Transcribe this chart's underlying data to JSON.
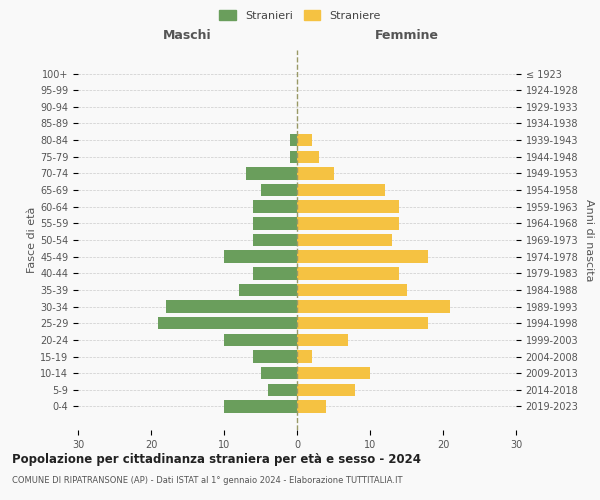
{
  "age_groups": [
    "0-4",
    "5-9",
    "10-14",
    "15-19",
    "20-24",
    "25-29",
    "30-34",
    "35-39",
    "40-44",
    "45-49",
    "50-54",
    "55-59",
    "60-64",
    "65-69",
    "70-74",
    "75-79",
    "80-84",
    "85-89",
    "90-94",
    "95-99",
    "100+"
  ],
  "birth_years": [
    "2019-2023",
    "2014-2018",
    "2009-2013",
    "2004-2008",
    "1999-2003",
    "1994-1998",
    "1989-1993",
    "1984-1988",
    "1979-1983",
    "1974-1978",
    "1969-1973",
    "1964-1968",
    "1959-1963",
    "1954-1958",
    "1949-1953",
    "1944-1948",
    "1939-1943",
    "1934-1938",
    "1929-1933",
    "1924-1928",
    "≤ 1923"
  ],
  "males": [
    10,
    4,
    5,
    6,
    10,
    19,
    18,
    8,
    6,
    10,
    6,
    6,
    6,
    5,
    7,
    1,
    1,
    0,
    0,
    0,
    0
  ],
  "females": [
    4,
    8,
    10,
    2,
    7,
    18,
    21,
    15,
    14,
    18,
    13,
    14,
    14,
    12,
    5,
    3,
    2,
    0,
    0,
    0,
    0
  ],
  "male_color": "#6a9e5c",
  "female_color": "#f5c242",
  "background_color": "#f9f9f9",
  "grid_color": "#cccccc",
  "title": "Popolazione per cittadinanza straniera per età e sesso - 2024",
  "subtitle": "COMUNE DI RIPATRANSONE (AP) - Dati ISTAT al 1° gennaio 2024 - Elaborazione TUTTITALIA.IT",
  "xlabel_left": "Maschi",
  "xlabel_right": "Femmine",
  "ylabel_left": "Fasce di età",
  "ylabel_right": "Anni di nascita",
  "legend_male": "Stranieri",
  "legend_female": "Straniere",
  "xlim": 30,
  "bar_height": 0.75
}
